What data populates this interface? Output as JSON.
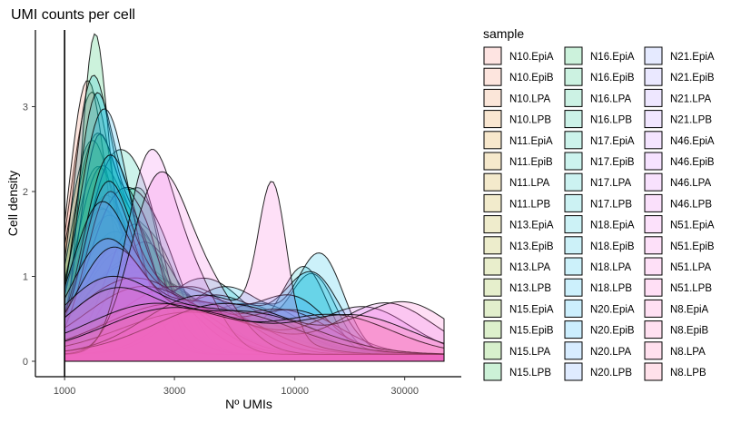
{
  "chart_data": {
    "type": "area",
    "title": "UMI counts per cell",
    "xlabel": "Nº UMIs",
    "ylabel": "Cell density",
    "x_scale": "log10",
    "xlim": [
      1000,
      60000
    ],
    "ylim": [
      0,
      3.85
    ],
    "x_ticks": [
      1000,
      3000,
      10000,
      30000
    ],
    "x_tick_labels": [
      "1000",
      "3000",
      "10000",
      "30000"
    ],
    "y_ticks": [
      0,
      1,
      2,
      3
    ],
    "y_tick_labels": [
      "0",
      "1",
      "2",
      "3"
    ],
    "vline_x": 1000,
    "grid": false,
    "legend_title": "sample",
    "legend_position": "right",
    "note": "overlapping density curves (peak x, peak density, spread in log10 units), values estimated by eye",
    "series": [
      {
        "name": "N10.EpiA",
        "color": "#F8766D",
        "components": [
          [
            1300,
            2.7,
            0.09
          ],
          [
            2000,
            0.6,
            0.2
          ]
        ]
      },
      {
        "name": "N10.EpiB",
        "color": "#F37B59",
        "components": [
          [
            1250,
            3.0,
            0.08
          ],
          [
            2100,
            0.5,
            0.18
          ]
        ]
      },
      {
        "name": "N10.LPA",
        "color": "#ED8141",
        "components": [
          [
            1500,
            1.8,
            0.12
          ],
          [
            3500,
            0.4,
            0.2
          ]
        ]
      },
      {
        "name": "N10.LPB",
        "color": "#E7861B",
        "components": [
          [
            1400,
            1.6,
            0.12
          ],
          [
            3000,
            0.5,
            0.2
          ]
        ]
      },
      {
        "name": "N11.EpiA",
        "color": "#DE8C00",
        "components": [
          [
            1300,
            2.3,
            0.1
          ],
          [
            2500,
            0.6,
            0.2
          ]
        ]
      },
      {
        "name": "N11.EpiB",
        "color": "#D49200",
        "components": [
          [
            1350,
            1.9,
            0.1
          ],
          [
            2200,
            0.8,
            0.15
          ]
        ]
      },
      {
        "name": "N11.LPA",
        "color": "#C99800",
        "components": [
          [
            1600,
            1.3,
            0.15
          ],
          [
            4000,
            0.5,
            0.25
          ]
        ]
      },
      {
        "name": "N11.LPB",
        "color": "#BD9D00",
        "components": [
          [
            1700,
            1.1,
            0.15
          ],
          [
            4500,
            0.5,
            0.25
          ]
        ]
      },
      {
        "name": "N13.EpiA",
        "color": "#B0A100",
        "components": [
          [
            1400,
            1.5,
            0.12
          ],
          [
            2800,
            0.8,
            0.18
          ]
        ]
      },
      {
        "name": "N13.EpiB",
        "color": "#A3A500",
        "components": [
          [
            1500,
            1.4,
            0.12
          ],
          [
            3000,
            0.7,
            0.2
          ]
        ]
      },
      {
        "name": "N13.LPA",
        "color": "#93AA00",
        "components": [
          [
            1800,
            1.0,
            0.18
          ],
          [
            5000,
            0.5,
            0.25
          ]
        ]
      },
      {
        "name": "N13.LPB",
        "color": "#82AD00",
        "components": [
          [
            2000,
            0.9,
            0.2
          ],
          [
            6000,
            0.4,
            0.25
          ]
        ]
      },
      {
        "name": "N15.EpiA",
        "color": "#6FB000",
        "components": [
          [
            1350,
            2.4,
            0.1
          ],
          [
            2300,
            1.2,
            0.12
          ]
        ]
      },
      {
        "name": "N15.EpiB",
        "color": "#57B300",
        "components": [
          [
            1400,
            2.0,
            0.1
          ],
          [
            2400,
            1.3,
            0.12
          ]
        ]
      },
      {
        "name": "N15.LPA",
        "color": "#35B600",
        "components": [
          [
            1700,
            1.2,
            0.15
          ],
          [
            5000,
            0.6,
            0.25
          ]
        ]
      },
      {
        "name": "N15.LPB",
        "color": "#00BA38",
        "components": [
          [
            1800,
            1.0,
            0.18
          ],
          [
            6000,
            0.5,
            0.25
          ]
        ]
      },
      {
        "name": "N16.EpiA",
        "color": "#00BC52",
        "components": [
          [
            1350,
            3.7,
            0.06
          ],
          [
            2100,
            1.4,
            0.08
          ]
        ]
      },
      {
        "name": "N16.EpiB",
        "color": "#00BE67",
        "components": [
          [
            1400,
            2.5,
            0.08
          ],
          [
            2200,
            1.8,
            0.08
          ]
        ]
      },
      {
        "name": "N16.LPA",
        "color": "#00BF7A",
        "components": [
          [
            2000,
            1.5,
            0.12
          ],
          [
            6000,
            0.6,
            0.2
          ]
        ]
      },
      {
        "name": "N16.LPB",
        "color": "#00C08B",
        "components": [
          [
            2200,
            1.3,
            0.14
          ],
          [
            7000,
            0.6,
            0.2
          ]
        ]
      },
      {
        "name": "N17.EpiA",
        "color": "#00C19B",
        "components": [
          [
            1500,
            1.8,
            0.1
          ],
          [
            2200,
            1.6,
            0.1
          ]
        ]
      },
      {
        "name": "N17.EpiB",
        "color": "#00C1AA",
        "components": [
          [
            1600,
            1.5,
            0.12
          ],
          [
            2500,
            1.2,
            0.12
          ]
        ]
      },
      {
        "name": "N17.LPA",
        "color": "#00C0B8",
        "components": [
          [
            4000,
            0.9,
            0.2
          ],
          [
            12000,
            0.9,
            0.1
          ]
        ]
      },
      {
        "name": "N17.LPB",
        "color": "#00BFC4",
        "components": [
          [
            3500,
            0.8,
            0.2
          ],
          [
            11000,
            1.0,
            0.1
          ]
        ]
      },
      {
        "name": "N18.EpiA",
        "color": "#00BDD0",
        "components": [
          [
            1300,
            3.0,
            0.08
          ],
          [
            2000,
            1.5,
            0.1
          ]
        ]
      },
      {
        "name": "N18.EpiB",
        "color": "#00BBDB",
        "components": [
          [
            1350,
            2.8,
            0.08
          ],
          [
            2100,
            1.6,
            0.1
          ]
        ]
      },
      {
        "name": "N18.LPA",
        "color": "#00B8E5",
        "components": [
          [
            5000,
            0.8,
            0.2
          ],
          [
            13000,
            1.1,
            0.1
          ]
        ]
      },
      {
        "name": "N18.LPB",
        "color": "#00B4EF",
        "components": [
          [
            4500,
            0.7,
            0.2
          ],
          [
            12000,
            0.9,
            0.12
          ]
        ]
      },
      {
        "name": "N20.EpiA",
        "color": "#00B0F6",
        "components": [
          [
            1400,
            1.8,
            0.1
          ],
          [
            1700,
            1.3,
            0.12
          ]
        ]
      },
      {
        "name": "N20.EpiB",
        "color": "#00ACFC",
        "components": [
          [
            1500,
            1.6,
            0.1
          ],
          [
            2000,
            1.0,
            0.15
          ]
        ]
      },
      {
        "name": "N20.LPA",
        "color": "#35A2FF",
        "components": [
          [
            3000,
            0.8,
            0.25
          ],
          [
            10000,
            0.6,
            0.15
          ]
        ]
      },
      {
        "name": "N20.LPB",
        "color": "#619CFF",
        "components": [
          [
            1550,
            1.7,
            0.1
          ],
          [
            3000,
            0.6,
            0.2
          ]
        ]
      },
      {
        "name": "N21.EpiA",
        "color": "#7F96FF",
        "components": [
          [
            1500,
            1.6,
            0.1
          ],
          [
            2400,
            0.8,
            0.18
          ]
        ]
      },
      {
        "name": "N21.EpiB",
        "color": "#978EFF",
        "components": [
          [
            1400,
            1.5,
            0.12
          ],
          [
            2600,
            0.7,
            0.2
          ]
        ]
      },
      {
        "name": "N21.LPA",
        "color": "#AA88FF",
        "components": [
          [
            2000,
            0.9,
            0.25
          ],
          [
            9000,
            0.5,
            0.2
          ]
        ]
      },
      {
        "name": "N21.LPB",
        "color": "#BB80FF",
        "components": [
          [
            2200,
            0.8,
            0.25
          ],
          [
            10000,
            0.5,
            0.2
          ]
        ]
      },
      {
        "name": "N46.EpiA",
        "color": "#C977FF",
        "components": [
          [
            1500,
            1.3,
            0.15
          ],
          [
            4000,
            0.6,
            0.2
          ]
        ]
      },
      {
        "name": "N46.EpiB",
        "color": "#D470FF",
        "components": [
          [
            1600,
            1.2,
            0.15
          ],
          [
            4500,
            0.5,
            0.22
          ]
        ]
      },
      {
        "name": "N46.LPA",
        "color": "#DE6AF6",
        "components": [
          [
            3000,
            0.6,
            0.3
          ],
          [
            20000,
            0.55,
            0.2
          ]
        ]
      },
      {
        "name": "N46.LPB",
        "color": "#E866ED",
        "components": [
          [
            3500,
            0.5,
            0.3
          ],
          [
            25000,
            0.6,
            0.2
          ]
        ]
      },
      {
        "name": "N51.EpiA",
        "color": "#EF67EB",
        "components": [
          [
            2300,
            2.1,
            0.1
          ],
          [
            3500,
            0.9,
            0.12
          ]
        ]
      },
      {
        "name": "N51.EpiB",
        "color": "#F563E3",
        "components": [
          [
            2500,
            1.8,
            0.12
          ],
          [
            4000,
            0.8,
            0.15
          ]
        ]
      },
      {
        "name": "N51.LPA",
        "color": "#FA62D9",
        "components": [
          [
            8000,
            1.7,
            0.06
          ],
          [
            4000,
            0.7,
            0.25
          ]
        ]
      },
      {
        "name": "N51.LPB",
        "color": "#FD61CF",
        "components": [
          [
            5000,
            0.6,
            0.3
          ],
          [
            30000,
            0.6,
            0.2
          ]
        ]
      },
      {
        "name": "N8.EpiA",
        "color": "#FF62C2",
        "components": [
          [
            1500,
            0.8,
            0.2
          ],
          [
            5000,
            0.5,
            0.3
          ]
        ]
      },
      {
        "name": "N8.EpiB",
        "color": "#FF63B6",
        "components": [
          [
            1600,
            0.7,
            0.2
          ],
          [
            6000,
            0.5,
            0.3
          ]
        ]
      },
      {
        "name": "N8.LPA",
        "color": "#FF66A8",
        "components": [
          [
            2500,
            0.6,
            0.3
          ],
          [
            15000,
            0.45,
            0.25
          ]
        ]
      },
      {
        "name": "N8.LPB",
        "color": "#FF6A98",
        "components": [
          [
            3000,
            0.55,
            0.3
          ],
          [
            18000,
            0.45,
            0.25
          ]
        ]
      }
    ]
  }
}
